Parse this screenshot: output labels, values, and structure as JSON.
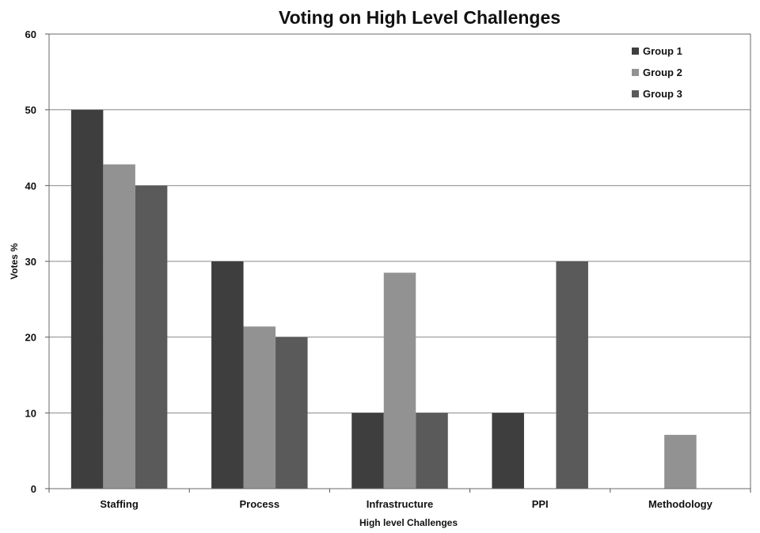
{
  "chart_data": {
    "type": "bar",
    "title": "Voting on High Level Challenges",
    "xlabel": "High level Challenges",
    "ylabel": "Votes %",
    "categories": [
      "Staffing",
      "Process",
      "Infrastructure",
      "PPI",
      "Methodology"
    ],
    "series": [
      {
        "name": "Group 1",
        "color": "#3e3e3e",
        "values": [
          50,
          30,
          10,
          10,
          0
        ]
      },
      {
        "name": "Group 2",
        "color": "#929292",
        "values": [
          42.8,
          21.4,
          28.5,
          0,
          7.1
        ]
      },
      {
        "name": "Group 3",
        "color": "#5a5a5a",
        "values": [
          40,
          20,
          10,
          30,
          0
        ]
      }
    ],
    "ylim": [
      0,
      60
    ],
    "yticks": [
      0,
      10,
      20,
      30,
      40,
      50,
      60
    ],
    "grid": true,
    "legend_position": "top-right"
  }
}
